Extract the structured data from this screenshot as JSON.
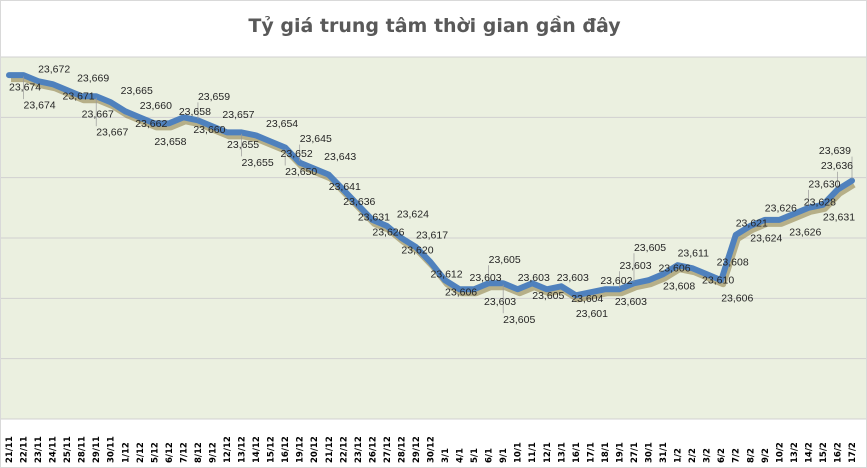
{
  "chart_data": {
    "type": "line",
    "title": "Tỷ giá trung tâm thời gian gần đây",
    "xlabel": "",
    "ylabel": "",
    "ylim": [
      23560,
      23680
    ],
    "grid": true,
    "legend": "none",
    "colors": {
      "line": "#4F81BD",
      "plot_bg": "#EBF0E0",
      "grid": "#D0D0D0",
      "title": "#595959"
    },
    "categories": [
      "21/11",
      "22/11",
      "23/11",
      "24/11",
      "25/11",
      "28/11",
      "29/11",
      "30/11",
      "1/12",
      "2/12",
      "5/12",
      "6/12",
      "7/12",
      "8/12",
      "9/12",
      "12/12",
      "13/12",
      "14/12",
      "15/12",
      "16/12",
      "19/12",
      "20/12",
      "21/12",
      "22/12",
      "23/12",
      "26/12",
      "27/12",
      "28/12",
      "29/12",
      "30/12",
      "3/1",
      "4/1",
      "5/1",
      "6/1",
      "9/1",
      "10/1",
      "11/1",
      "12/1",
      "13/1",
      "16/1",
      "17/1",
      "18/1",
      "19/1",
      "27/1",
      "30/1",
      "31/1",
      "1/2",
      "2/2",
      "3/2",
      "6/2",
      "7/2",
      "8/2",
      "9/2",
      "10/2",
      "13/2",
      "14/2",
      "15/2",
      "16/2",
      "17/2"
    ],
    "series": [
      {
        "values": [
          23674,
          23674,
          23672,
          23671,
          23669,
          23667,
          23667,
          23665,
          23662,
          23660,
          23658,
          23658,
          23660,
          23659,
          23657,
          23655,
          23655,
          23654,
          23652,
          23650,
          23645,
          23643,
          23641,
          23636,
          23631,
          23626,
          23624,
          23620,
          23617,
          23612,
          23606,
          23603,
          23603,
          23605,
          23605,
          23603,
          23605,
          23603,
          23604,
          23601,
          23602,
          23603,
          23603,
          23605,
          23606,
          23608,
          23611,
          23610,
          23608,
          23606,
          23621,
          23624,
          23626,
          23626,
          23628,
          23630,
          23631,
          23636,
          23639
        ],
        "data_labels": [
          "23,674",
          "23,674",
          "23,672",
          "23,671",
          "23,669",
          "23,667",
          "23,667",
          "23,665",
          "23,662",
          "23,660",
          "23,658",
          "23,658",
          "23,660",
          "23,659",
          "23,657",
          "23,655",
          "23,655",
          "23,654",
          "23,652",
          "23,650",
          "23,645",
          "23,643",
          "23,641",
          "23,636",
          "23,631",
          "23,626",
          "23,624",
          "23,620",
          "23,617",
          "23,612",
          "23,606",
          "23,603",
          "23,603",
          "23,605",
          "23,605",
          "23,603",
          "23,605",
          "23,603",
          "23,604",
          "23,601",
          "23,602",
          "23,603",
          "23,603",
          "23,605",
          "23,606",
          "23,608",
          "23,611",
          "23,610",
          "23,608",
          "23,606",
          "23,621",
          "23,624",
          "23,626",
          "23,626",
          "23,628",
          "23,630",
          "23,631",
          "23,636",
          "23,639"
        ]
      }
    ]
  }
}
